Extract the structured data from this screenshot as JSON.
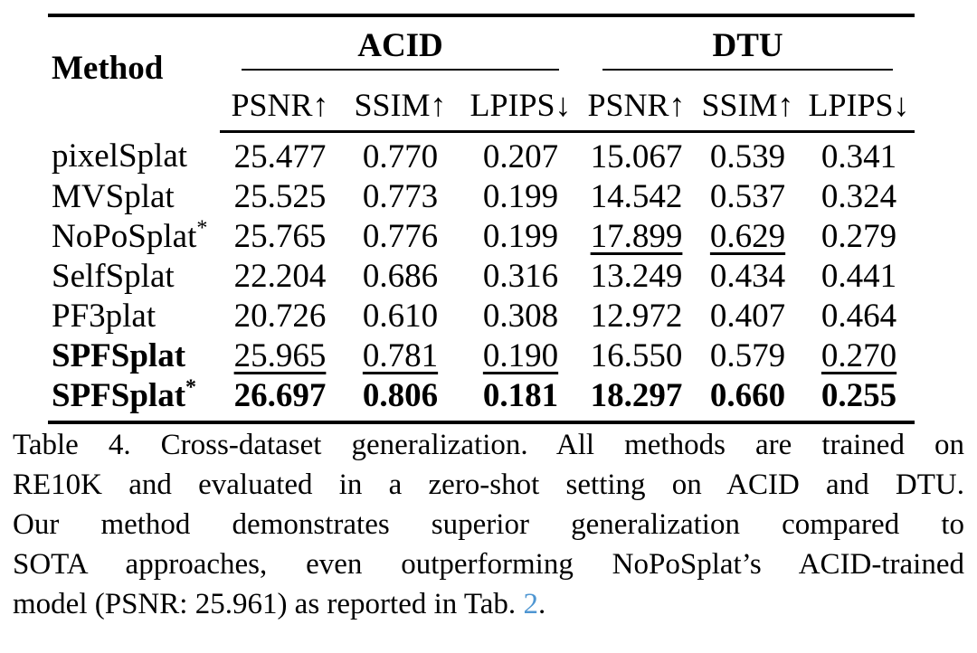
{
  "page": {
    "background_color": "#ffffff",
    "text_color": "#000000",
    "link_color": "#4e96d2"
  },
  "table": {
    "method_header": "Method",
    "groups": [
      {
        "label": "ACID",
        "metrics": [
          "PSNR↑",
          "SSIM↑",
          "LPIPS↓"
        ]
      },
      {
        "label": "DTU",
        "metrics": [
          "PSNR↑",
          "SSIM↑",
          "LPIPS↓"
        ]
      }
    ],
    "rows": [
      {
        "method": "pixelSplat",
        "sup": "",
        "values": [
          "25.477",
          "0.770",
          "0.207",
          "15.067",
          "0.539",
          "0.341"
        ]
      },
      {
        "method": "MVSplat",
        "sup": "",
        "values": [
          "25.525",
          "0.773",
          "0.199",
          "14.542",
          "0.537",
          "0.324"
        ]
      },
      {
        "method": "NoPoSplat",
        "sup": "*",
        "values": [
          "25.765",
          "0.776",
          "0.199",
          "17.899",
          "0.629",
          "0.279"
        ]
      },
      {
        "method": "SelfSplat",
        "sup": "",
        "values": [
          "22.204",
          "0.686",
          "0.316",
          "13.249",
          "0.434",
          "0.441"
        ]
      },
      {
        "method": "PF3plat",
        "sup": "",
        "values": [
          "20.726",
          "0.610",
          "0.308",
          "12.972",
          "0.407",
          "0.464"
        ]
      },
      {
        "method": "SPFSplat",
        "sup": "",
        "values": [
          "25.965",
          "0.781",
          "0.190",
          "16.550",
          "0.579",
          "0.270"
        ]
      },
      {
        "method": "SPFSplat",
        "sup": "*",
        "values": [
          "26.697",
          "0.806",
          "0.181",
          "18.297",
          "0.660",
          "0.255"
        ]
      }
    ]
  },
  "caption": {
    "lines": [
      "Table 4. Cross-dataset generalization. All methods are trained on",
      "RE10K and evaluated in a zero-shot setting on ACID and DTU.",
      "Our method demonstrates superior generalization compared to",
      "SOTA approaches, even outperforming NoPoSplat’s ACID-trained"
    ],
    "last_line_before_link": "model (PSNR: 25.961) as reported in Tab. ",
    "link_text": "2",
    "after_link": "."
  }
}
